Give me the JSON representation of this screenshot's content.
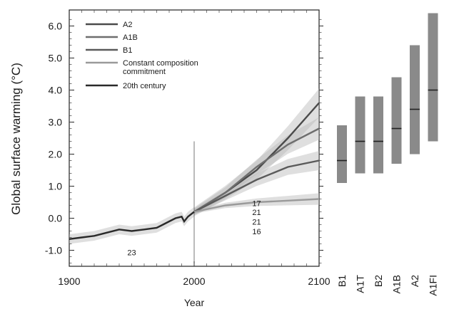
{
  "chart_data": [
    {
      "type": "line",
      "ylabel": "Global surface warming (°C)",
      "xlabel": "Year",
      "xlim": [
        1900,
        2100
      ],
      "ylim": [
        -1.5,
        6.5
      ],
      "x_ticks": [
        "1900",
        "2000",
        "2100"
      ],
      "y_ticks": [
        "6.0",
        "5.0",
        "4.0",
        "3.0",
        "2.0",
        "1.0",
        "0.0",
        "-1.0"
      ],
      "series": [
        {
          "name": "A2",
          "color": "#4a4a4a",
          "x": [
            2000,
            2025,
            2050,
            2075,
            2100
          ],
          "y": [
            0.2,
            0.8,
            1.5,
            2.5,
            3.6
          ]
        },
        {
          "name": "A1B",
          "color": "#6e6e6e",
          "x": [
            2000,
            2025,
            2050,
            2075,
            2100
          ],
          "y": [
            0.2,
            0.8,
            1.6,
            2.3,
            2.8
          ]
        },
        {
          "name": "B1",
          "color": "#5a5a5a",
          "x": [
            2000,
            2025,
            2050,
            2075,
            2100
          ],
          "y": [
            0.2,
            0.7,
            1.2,
            1.6,
            1.8
          ]
        },
        {
          "name": "Constant composition commitment",
          "color": "#9a9a9a",
          "x": [
            2000,
            2025,
            2050,
            2075,
            2100
          ],
          "y": [
            0.2,
            0.4,
            0.5,
            0.55,
            0.6
          ]
        },
        {
          "name": "20th century",
          "color": "#2a2a2a",
          "x": [
            1900,
            1910,
            1920,
            1930,
            1940,
            1950,
            1960,
            1970,
            1975,
            1980,
            1985,
            1990,
            1992,
            1995,
            2000
          ],
          "y": [
            -0.65,
            -0.6,
            -0.55,
            -0.45,
            -0.35,
            -0.4,
            -0.35,
            -0.3,
            -0.2,
            -0.1,
            0.0,
            0.05,
            -0.1,
            0.05,
            0.2
          ]
        }
      ],
      "model_counts": [
        {
          "label": "23",
          "x": 1950,
          "y": -1.15
        },
        {
          "label": "17",
          "x": 2050,
          "y": 0.38
        },
        {
          "label": "21",
          "x": 2050,
          "y": 0.1
        },
        {
          "label": "21",
          "x": 2050,
          "y": -0.2
        },
        {
          "label": "16",
          "x": 2050,
          "y": -0.5
        }
      ]
    },
    {
      "type": "bar",
      "categories": [
        "B1",
        "A1T",
        "B2",
        "A1B",
        "A2",
        "A1FI"
      ],
      "best_estimate": [
        1.8,
        2.4,
        2.4,
        2.8,
        3.4,
        4.0
      ],
      "low": [
        1.1,
        1.4,
        1.4,
        1.7,
        2.0,
        2.4
      ],
      "high": [
        2.9,
        3.8,
        3.8,
        4.4,
        5.4,
        6.4
      ],
      "bar_color": "#8a8a8a"
    }
  ]
}
